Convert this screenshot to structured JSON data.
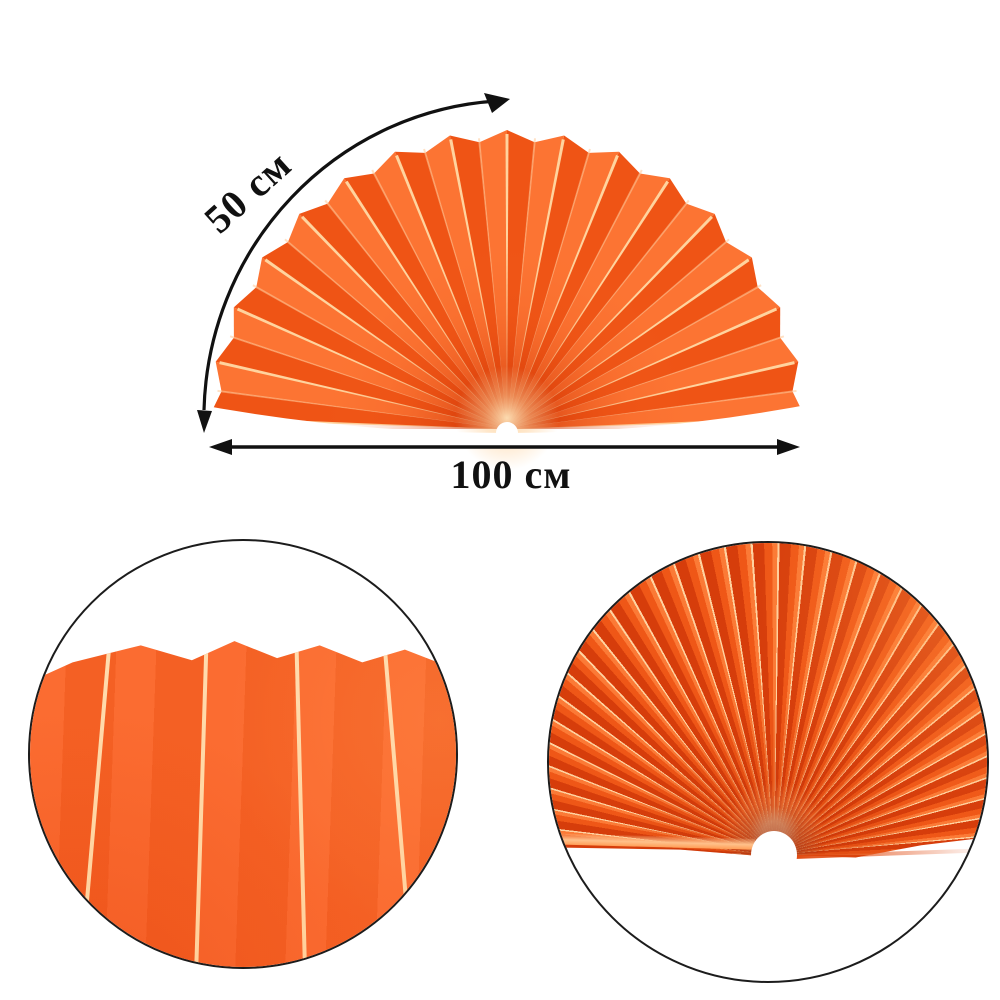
{
  "product": {
    "item": "orange-pleated-paper-fan",
    "shape": "semicircle",
    "colors": {
      "bright": "#fc7433",
      "shadow": "#ef5415",
      "crease": "#ffd9a4",
      "crease_faint": "#ffc897",
      "deep_center": "#b82202",
      "detail_orange": "#fb6426",
      "detail_dark": "#d63d0b",
      "detail_mid": "#ef5717",
      "detail_bright": "#fb7a36",
      "detail_crease": "#ffd2a0",
      "arrow": "#111111",
      "circle_border": "#1c1c1c",
      "background": "#ffffff"
    }
  },
  "dimensions": {
    "radius_label": "50 см",
    "width_label": "100 см"
  }
}
